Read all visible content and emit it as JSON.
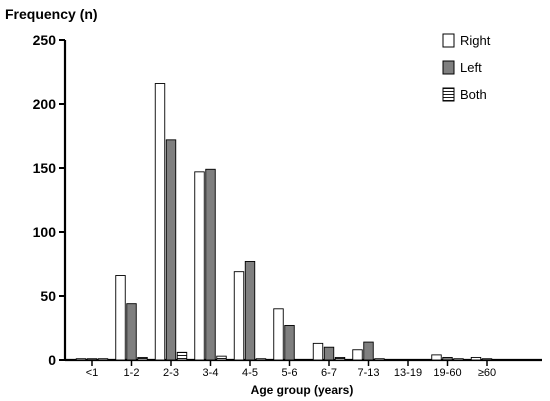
{
  "chart_data": {
    "type": "bar",
    "ylabel": "Frequency (n)",
    "xlabel": "Age group (years)",
    "categories": [
      "<1",
      "1-2",
      "2-3",
      "3-4",
      "4-5",
      "5-6",
      "6-7",
      "7-13",
      "13-19",
      "19-60",
      "≥60"
    ],
    "yticks": [
      0,
      50,
      100,
      150,
      200,
      250
    ],
    "ylim": [
      0,
      250
    ],
    "grid": false,
    "legend_position": "top-right",
    "series": [
      {
        "name": "Right",
        "fill": "#ffffff",
        "pattern": "none",
        "values": [
          1,
          66,
          216,
          147,
          69,
          40,
          13,
          8,
          0,
          4,
          2
        ]
      },
      {
        "name": "Left",
        "fill": "#7f7f7f",
        "pattern": "none",
        "values": [
          1,
          44,
          172,
          149,
          77,
          27,
          10,
          14,
          0,
          2,
          1
        ]
      },
      {
        "name": "Both",
        "fill": "#ffffff",
        "pattern": "horizontal-lines",
        "values": [
          1,
          2,
          6,
          3,
          1,
          0,
          2,
          1,
          0,
          1,
          0
        ]
      }
    ]
  }
}
